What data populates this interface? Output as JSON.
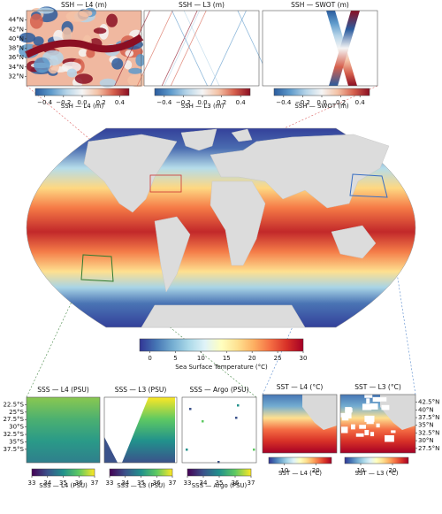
{
  "chart_data": [
    {
      "type": "map",
      "title": "SSH — L4 (m)",
      "colorbar_label": "SSH — L4 (m)",
      "colormap": "RdBu_r",
      "ylim": [
        30,
        46
      ],
      "yticks": [
        {
          "value": 44,
          "label": "44°N"
        },
        {
          "value": 42,
          "label": "42°N"
        },
        {
          "value": 40,
          "label": "40°N"
        },
        {
          "value": 38,
          "label": "38°N"
        },
        {
          "value": 36,
          "label": "36°N"
        },
        {
          "value": 34,
          "label": "34°N"
        },
        {
          "value": 32,
          "label": "32°N"
        }
      ],
      "clim": [
        -0.5,
        0.5
      ],
      "cticks": [
        {
          "value": -0.4,
          "label": "−0.4"
        },
        {
          "value": -0.2,
          "label": "−0.2"
        },
        {
          "value": 0,
          "label": "0.0"
        },
        0.2,
        0.4
      ]
    },
    {
      "type": "map",
      "title": "SSH — L3 (m)",
      "colorbar_label": "SSH — L3 (m)",
      "colormap": "RdBu_r",
      "clim": [
        -0.5,
        0.5
      ],
      "cticks": [
        {
          "value": -0.4,
          "label": "−0.4"
        },
        {
          "value": -0.2,
          "label": "−0.2"
        },
        {
          "value": 0,
          "label": "0.0"
        },
        0.2,
        0.4
      ]
    },
    {
      "type": "map",
      "title": "SSH — SWOT (m)",
      "colorbar_label": "SSH — SWOT (m)",
      "colormap": "RdBu_r",
      "clim": [
        -0.5,
        0.5
      ],
      "cticks": [
        {
          "value": -0.4,
          "label": "−0.4"
        },
        {
          "value": -0.2,
          "label": "−0.2"
        },
        {
          "value": 0,
          "label": "0.0"
        },
        0.2,
        0.4
      ]
    },
    {
      "type": "globe",
      "colorbar_label": "Sea Surface Temperature (°C)",
      "colormap": "RdYlBu_r",
      "clim": [
        -2,
        30
      ],
      "cticks": [
        0,
        5,
        10,
        15,
        20,
        25,
        30
      ]
    },
    {
      "type": "map",
      "title": "SSS — L4 (PSU)",
      "colorbar_label": "SSS — L4 (PSU)",
      "colormap": "viridis",
      "ylim": [
        -42,
        -20
      ],
      "yticks": [
        {
          "value": -22.5,
          "label": "22.5°S"
        },
        {
          "value": -25,
          "label": "25°S"
        },
        {
          "value": -27.5,
          "label": "27.5°S"
        },
        {
          "value": -30,
          "label": "30°S"
        },
        {
          "value": -32.5,
          "label": "32.5°S"
        },
        {
          "value": -35,
          "label": "35°S"
        },
        {
          "value": -37.5,
          "label": "37.5°S"
        }
      ],
      "clim": [
        33,
        37
      ],
      "cticks": [
        33,
        34,
        35,
        36,
        37
      ]
    },
    {
      "type": "map",
      "title": "SSS — L3 (PSU)",
      "colorbar_label": "SSS — L3 (PSU)",
      "colormap": "viridis",
      "clim": [
        33,
        37
      ],
      "cticks": [
        33,
        34,
        35,
        36,
        37
      ]
    },
    {
      "type": "map",
      "title": "SSS — Argo (PSU)",
      "colorbar_label": "SSS — Argo (PSU)",
      "colormap": "viridis",
      "clim": [
        33,
        37
      ],
      "cticks": [
        33,
        34,
        35,
        36,
        37
      ]
    },
    {
      "type": "map",
      "title": "SST — L4 (°C)",
      "colorbar_label": "SST — L4 (°C)",
      "colormap": "RdYlBu_r",
      "clim": [
        5,
        25
      ],
      "cticks": [
        10,
        20
      ]
    },
    {
      "type": "map",
      "title": "SST — L3 (°C)",
      "colorbar_label": "SST — L3 (°C)",
      "colormap": "RdYlBu_r",
      "ylim": [
        26,
        45
      ],
      "ylabel_side": "right",
      "yticks": [
        {
          "value": 42.5,
          "label": "42.5°N"
        },
        {
          "value": 40,
          "label": "40°N"
        },
        {
          "value": 37.5,
          "label": "37.5°N"
        },
        {
          "value": 35,
          "label": "35°N"
        },
        {
          "value": 32.5,
          "label": "32.5°N"
        },
        {
          "value": 30,
          "label": "30°N"
        },
        {
          "value": 27.5,
          "label": "27.5°N"
        }
      ],
      "clim": [
        5,
        25
      ],
      "cticks": [
        10,
        20
      ]
    }
  ]
}
